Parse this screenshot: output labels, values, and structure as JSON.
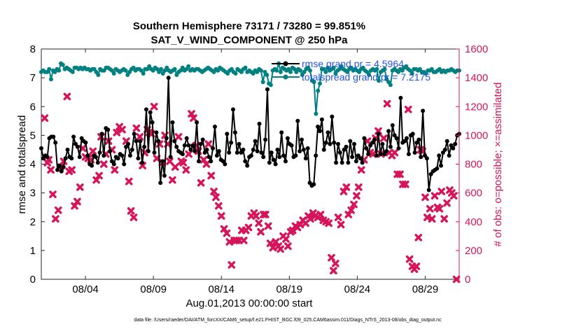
{
  "chart_data": {
    "type": "line",
    "title_line1": "Southern Hemisphere 73171 / 73280 = 99.851%",
    "title_line2": "SAT_V_WIND_COMPONENT @ 250 hPa",
    "xlabel": "Aug.01,2013 00:00:00 start",
    "ylabel_left": "rmse and totalspread",
    "ylabel_right": "# of obs: o=possible; ×=assimilated",
    "footer": "data file: /Users/raeder/DAI/ATM_forcXX/CAM6_setup/f.e21.FHIST_BGC.f09_025.CAM6assim.011/Diags_NTrS_2013-08/obs_diag_output.nc",
    "x_range_days": [
      0.25,
      31.0
    ],
    "x_ticks": [
      {
        "label": "08/04",
        "day": 3.5
      },
      {
        "label": "08/09",
        "day": 8.5
      },
      {
        "label": "08/14",
        "day": 13.5
      },
      {
        "label": "08/19",
        "day": 18.5
      },
      {
        "label": "08/24",
        "day": 23.5
      },
      {
        "label": "08/29",
        "day": 28.5
      }
    ],
    "y_left_range": [
      0,
      8
    ],
    "y_left_ticks": [
      "0",
      "1",
      "2",
      "3",
      "4",
      "5",
      "6",
      "7",
      "8"
    ],
    "y_right_range": [
      0,
      1600
    ],
    "y_right_ticks": [
      "0",
      "200",
      "400",
      "600",
      "800",
      "1000",
      "1200",
      "1400",
      "1600"
    ],
    "legend": [
      {
        "label": "rmse grand pr = 4.5964",
        "color": "#000000"
      },
      {
        "label": "totalspread grand pr = 7.2175",
        "color": "#008080"
      }
    ],
    "series": [
      {
        "name": "rmse",
        "axis": "left",
        "color": "#000000",
        "values": [
          4.55,
          4.2,
          4.3,
          4.25,
          4.9,
          4.95,
          4.95,
          4.75,
          3.8,
          3.95,
          3.75,
          3.9,
          4.2,
          4.5,
          4.25,
          4.2,
          4.95,
          4.7,
          4.6,
          4.25,
          4.9,
          4.8,
          4.75,
          4.3,
          4.0,
          3.95,
          4.3,
          4.25,
          4.05,
          4.4,
          5.05,
          4.3,
          5.25,
          5.2,
          4.45,
          4.1,
          4.0,
          4.25,
          4.2,
          4.35,
          4.3,
          4.0,
          4.6,
          4.7,
          4.3,
          4.5,
          5.05,
          4.8,
          4.2,
          4.8,
          4.05,
          4.6,
          5.9,
          4.45,
          5.8,
          5.45,
          4.4,
          5.1,
          4.8,
          3.35,
          4.1,
          3.6,
          4.9,
          7.0,
          4.25,
          5.45,
          4.8,
          4.6,
          4.45,
          4.4,
          4.35,
          4.65,
          4.9,
          4.65,
          4.5,
          4.65,
          4.45,
          5.45,
          4.1,
          4.7,
          4.85,
          4.4,
          4.5,
          4.25,
          4.1,
          4.55,
          5.3,
          4.3,
          4.45,
          4.15,
          4.1,
          4.0,
          5.05,
          4.4,
          4.75,
          5.9,
          5.1,
          4.4,
          4.7,
          4.4,
          4.5,
          4.1,
          3.95,
          4.25,
          4.3,
          4.5,
          4.8,
          4.45,
          5.4,
          4.4,
          4.25,
          4.85,
          6.6,
          4.05,
          4.4,
          4.15,
          4.0,
          4.5,
          4.25,
          5.1,
          4.3,
          4.1,
          4.9,
          4.7,
          4.65,
          4.25,
          4.3,
          5.5,
          4.45,
          4.85,
          4.5,
          4.2,
          4.55,
          3.35,
          3.25,
          3.3,
          4.3,
          5.3,
          5.15,
          5.55,
          4.5,
          4.75,
          5.1,
          4.7,
          5.65,
          4.75,
          4.05,
          4.7,
          4.4,
          4.05,
          4.5,
          4.6,
          4.05,
          4.8,
          4.25,
          4.7,
          4.1,
          4.3,
          4.2,
          4.05,
          4.9,
          4.55,
          4.35,
          4.65,
          4.75,
          4.85,
          4.3,
          5.05,
          4.35,
          4.7,
          4.35,
          4.45,
          5.15,
          4.6,
          5.35,
          5.0,
          4.9,
          4.55,
          6.3,
          4.75,
          4.8,
          4.9,
          4.35,
          5.0,
          5.05,
          4.4,
          4.75,
          4.85,
          4.25,
          5.85,
          4.3,
          4.2,
          3.1,
          3.65,
          3.75,
          3.8,
          3.85,
          4.3,
          3.95,
          4.4,
          4.5,
          4.8,
          4.3,
          4.65,
          4.55,
          4.7,
          5.0,
          5.05
        ]
      },
      {
        "name": "totalspread",
        "axis": "left",
        "color": "#008080",
        "values": [
          7.2,
          7.25,
          7.2,
          7.2,
          7.3,
          6.95,
          7.25,
          7.2,
          7.3,
          7.25,
          7.5,
          7.45,
          7.3,
          7.35,
          7.3,
          7.25,
          7.2,
          7.35,
          7.35,
          7.3,
          7.35,
          7.3,
          7.35,
          7.3,
          7.3,
          7.25,
          7.3,
          7.3,
          7.2,
          7.1,
          7.3,
          7.25,
          7.25,
          7.35,
          7.35,
          7.3,
          7.25,
          7.15,
          7.3,
          7.25,
          7.2,
          7.25,
          7.3,
          7.25,
          7.1,
          7.2,
          7.3,
          7.35,
          7.25,
          7.3,
          7.3,
          7.25,
          7.15,
          7.3,
          7.3,
          7.4,
          7.3,
          7.25,
          7.35,
          7.3,
          7.2,
          7.3,
          7.15,
          7.25,
          7.35,
          7.25,
          7.2,
          7.25,
          7.3,
          7.1,
          7.2,
          7.25,
          7.35,
          7.25,
          7.3,
          7.4,
          7.25,
          7.3,
          7.25,
          7.3,
          7.3,
          7.25,
          7.2,
          7.25,
          7.3,
          7.35,
          7.3,
          7.25,
          7.2,
          7.3,
          7.25,
          7.35,
          7.3,
          7.25,
          7.2,
          7.15,
          7.25,
          7.3,
          7.2,
          7.15,
          7.3,
          7.25,
          7.2,
          7.3,
          7.35,
          7.2,
          7.25,
          7.2,
          7.15,
          7.25,
          7.2,
          7.3,
          7.25,
          6.85,
          7.2,
          7.1,
          6.8,
          6.75,
          7.25,
          7.3,
          7.25,
          7.5,
          7.2,
          7.35,
          7.3,
          7.25,
          7.3,
          7.2,
          7.35,
          7.3,
          7.2,
          7.3,
          7.25,
          7.1,
          7.2,
          7.3,
          7.35,
          7.25,
          6.9,
          6.85,
          5.75,
          6.55,
          6.8,
          7.3,
          7.3,
          7.2,
          7.35,
          7.25,
          7.3,
          7.35,
          7.15,
          7.25,
          7.3,
          7.4,
          7.3,
          7.25,
          7.2,
          7.3,
          7.35,
          7.25,
          7.3,
          7.25,
          7.2,
          7.3,
          7.35,
          7.25,
          7.2,
          7.1,
          7.25,
          7.3,
          7.25,
          7.3,
          6.9,
          7.2,
          7.25,
          7.3,
          6.95,
          6.85,
          6.75,
          7.25,
          7.3,
          7.25,
          7.2,
          7.3,
          7.25,
          7.35,
          7.4,
          7.3,
          7.25,
          7.15,
          7.3,
          7.3,
          7.25,
          7.3,
          7.2,
          7.2,
          7.15,
          7.25,
          7.25,
          7.3,
          7.2,
          7.2,
          7.25,
          7.3,
          7.2,
          7.25,
          7.2,
          7.25,
          7.25,
          7.3,
          7.25,
          7.2,
          7.25,
          7.25
        ]
      }
    ],
    "obs_assimilated": {
      "axis": "right",
      "color": "#d6145a",
      "points": [
        [
          0.5,
          1120
        ],
        [
          0.7,
          810
        ],
        [
          0.8,
          830
        ],
        [
          0.95,
          760
        ],
        [
          1.1,
          590
        ],
        [
          1.3,
          420
        ],
        [
          1.5,
          480
        ],
        [
          1.65,
          780
        ],
        [
          1.9,
          820
        ],
        [
          2.15,
          1270
        ],
        [
          2.3,
          750
        ],
        [
          2.5,
          760
        ],
        [
          2.7,
          510
        ],
        [
          2.9,
          540
        ],
        [
          3.1,
          640
        ],
        [
          3.3,
          910
        ],
        [
          3.5,
          850
        ],
        [
          3.7,
          840
        ],
        [
          3.9,
          830
        ],
        [
          4.05,
          890
        ],
        [
          4.3,
          690
        ],
        [
          4.5,
          720
        ],
        [
          4.65,
          990
        ],
        [
          4.85,
          800
        ],
        [
          5.0,
          870
        ],
        [
          5.2,
          960
        ],
        [
          5.45,
          900
        ],
        [
          5.65,
          760
        ],
        [
          5.8,
          1020
        ],
        [
          6.0,
          1060
        ],
        [
          6.2,
          1040
        ],
        [
          6.5,
          960
        ],
        [
          6.7,
          680
        ],
        [
          6.85,
          475
        ],
        [
          7.05,
          430
        ],
        [
          7.25,
          1050
        ],
        [
          7.5,
          990
        ],
        [
          7.7,
          790
        ],
        [
          7.85,
          880
        ],
        [
          8.05,
          1040
        ],
        [
          8.2,
          1020
        ],
        [
          8.35,
          1010
        ],
        [
          8.55,
          1200
        ],
        [
          8.75,
          840
        ],
        [
          8.95,
          940
        ],
        [
          9.15,
          810
        ],
        [
          9.35,
          1000
        ],
        [
          9.55,
          940
        ],
        [
          9.7,
          820
        ],
        [
          9.9,
          690
        ],
        [
          10.1,
          780
        ],
        [
          10.35,
          990
        ],
        [
          10.55,
          820
        ],
        [
          10.7,
          810
        ],
        [
          10.9,
          760
        ],
        [
          11.1,
          870
        ],
        [
          11.3,
          1150
        ],
        [
          11.45,
          1120
        ],
        [
          11.65,
          930
        ],
        [
          11.8,
          890
        ],
        [
          12.0,
          670
        ],
        [
          12.2,
          830
        ],
        [
          12.4,
          800
        ],
        [
          12.55,
          940
        ],
        [
          12.75,
          720
        ],
        [
          12.95,
          610
        ],
        [
          13.1,
          570
        ],
        [
          13.3,
          510
        ],
        [
          13.5,
          440
        ],
        [
          13.7,
          350
        ],
        [
          13.9,
          320
        ],
        [
          14.1,
          260
        ],
        [
          14.25,
          100
        ],
        [
          14.45,
          270
        ],
        [
          14.6,
          270
        ],
        [
          14.8,
          270
        ],
        [
          15.0,
          340
        ],
        [
          15.15,
          270
        ],
        [
          15.3,
          340
        ],
        [
          15.5,
          360
        ],
        [
          15.7,
          440
        ],
        [
          15.9,
          460
        ],
        [
          16.05,
          440
        ],
        [
          16.25,
          390
        ],
        [
          16.4,
          330
        ],
        [
          16.6,
          450
        ],
        [
          16.75,
          450
        ],
        [
          16.95,
          370
        ],
        [
          17.1,
          250
        ],
        [
          17.3,
          220
        ],
        [
          17.5,
          260
        ],
        [
          17.7,
          230
        ],
        [
          17.85,
          210
        ],
        [
          18.05,
          300
        ],
        [
          18.25,
          280
        ],
        [
          18.4,
          230
        ],
        [
          18.6,
          330
        ],
        [
          18.75,
          340
        ],
        [
          18.95,
          370
        ],
        [
          19.1,
          360
        ],
        [
          19.3,
          380
        ],
        [
          19.5,
          410
        ],
        [
          19.7,
          390
        ],
        [
          19.9,
          440
        ],
        [
          20.05,
          420
        ],
        [
          20.25,
          460
        ],
        [
          20.4,
          440
        ],
        [
          20.6,
          430
        ],
        [
          20.8,
          450
        ],
        [
          21.0,
          410
        ],
        [
          21.2,
          400
        ],
        [
          21.4,
          390
        ],
        [
          21.6,
          150
        ],
        [
          21.75,
          60
        ],
        [
          21.9,
          110
        ],
        [
          22.1,
          430
        ],
        [
          22.3,
          380
        ],
        [
          22.5,
          610
        ],
        [
          22.7,
          640
        ],
        [
          22.85,
          450
        ],
        [
          23.05,
          480
        ],
        [
          23.25,
          520
        ],
        [
          23.45,
          580
        ],
        [
          23.6,
          640
        ],
        [
          23.8,
          760
        ],
        [
          24.0,
          830
        ],
        [
          24.25,
          960
        ],
        [
          24.45,
          880
        ],
        [
          24.65,
          870
        ],
        [
          24.85,
          980
        ],
        [
          25.05,
          1030
        ],
        [
          25.25,
          870
        ],
        [
          25.45,
          980
        ],
        [
          25.7,
          1220
        ],
        [
          25.85,
          880
        ],
        [
          26.05,
          860
        ],
        [
          26.25,
          880
        ],
        [
          26.45,
          730
        ],
        [
          26.65,
          730
        ],
        [
          26.85,
          660
        ],
        [
          27.05,
          660
        ],
        [
          27.25,
          1180
        ],
        [
          27.35,
          140
        ],
        [
          27.55,
          90
        ],
        [
          27.7,
          70
        ],
        [
          27.85,
          90
        ],
        [
          28.0,
          290
        ],
        [
          28.15,
          900
        ],
        [
          28.3,
          890
        ],
        [
          28.5,
          570
        ],
        [
          28.65,
          430
        ],
        [
          28.85,
          490
        ],
        [
          29.0,
          420
        ],
        [
          29.2,
          580
        ],
        [
          29.4,
          500
        ],
        [
          29.55,
          490
        ],
        [
          29.7,
          610
        ],
        [
          29.9,
          420
        ],
        [
          30.1,
          530
        ],
        [
          30.3,
          620
        ],
        [
          30.45,
          600
        ],
        [
          30.6,
          580
        ],
        [
          30.8,
          0
        ]
      ]
    }
  }
}
